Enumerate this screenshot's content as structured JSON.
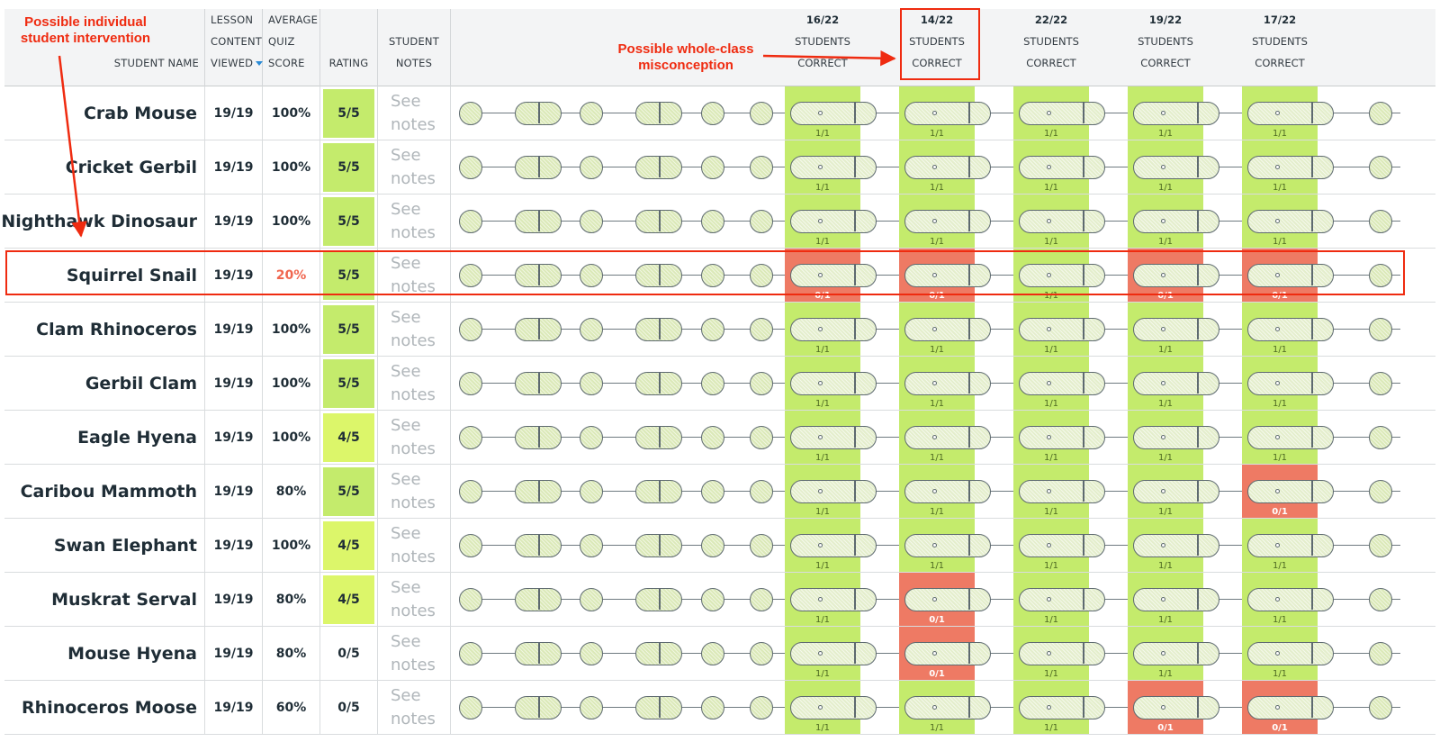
{
  "headers": {
    "student_name": "STUDENT NAME",
    "lesson_content_viewed": [
      "LESSON",
      "CONTENT",
      "VIEWED"
    ],
    "average_quiz_score": [
      "AVERAGE",
      "QUIZ",
      "SCORE"
    ],
    "rating": "RATING",
    "student_notes": [
      "STUDENT",
      "NOTES"
    ],
    "quizzes": [
      {
        "fraction": "16/22",
        "line1": "STUDENTS",
        "line2": "CORRECT"
      },
      {
        "fraction": "14/22",
        "line1": "STUDENTS",
        "line2": "CORRECT"
      },
      {
        "fraction": "22/22",
        "line1": "STUDENTS",
        "line2": "CORRECT"
      },
      {
        "fraction": "19/22",
        "line1": "STUDENTS",
        "line2": "CORRECT"
      },
      {
        "fraction": "17/22",
        "line1": "STUDENTS",
        "line2": "CORRECT"
      }
    ]
  },
  "annotations": {
    "individual": [
      "Possible individual",
      "student intervention"
    ],
    "whole_class": [
      "Possible whole-class",
      "misconception"
    ],
    "color": "#ef2b10"
  },
  "notes_label": [
    "See",
    "notes"
  ],
  "colors": {
    "correct": "#c4eb6c",
    "incorrect": "#ee7a64",
    "rating_high": "#c4eb6c",
    "rating_mid": "#dcf66a",
    "low_score": "#f0664f"
  },
  "students": [
    {
      "name": "Crab Mouse",
      "viewed": "19/19",
      "score": "100%",
      "low": false,
      "rating": "5/5",
      "rating_level": "high",
      "quizzes": [
        "1/1",
        "1/1",
        "1/1",
        "1/1",
        "1/1"
      ]
    },
    {
      "name": "Cricket Gerbil",
      "viewed": "19/19",
      "score": "100%",
      "low": false,
      "rating": "5/5",
      "rating_level": "high",
      "quizzes": [
        "1/1",
        "1/1",
        "1/1",
        "1/1",
        "1/1"
      ]
    },
    {
      "name": "Nighthawk Dinosaur",
      "viewed": "19/19",
      "score": "100%",
      "low": false,
      "rating": "5/5",
      "rating_level": "high",
      "quizzes": [
        "1/1",
        "1/1",
        "1/1",
        "1/1",
        "1/1"
      ]
    },
    {
      "name": "Squirrel Snail",
      "viewed": "19/19",
      "score": "20%",
      "low": true,
      "rating": "5/5",
      "rating_level": "high",
      "quizzes": [
        "0/1",
        "0/1",
        "1/1",
        "0/1",
        "0/1"
      ]
    },
    {
      "name": "Clam Rhinoceros",
      "viewed": "19/19",
      "score": "100%",
      "low": false,
      "rating": "5/5",
      "rating_level": "high",
      "quizzes": [
        "1/1",
        "1/1",
        "1/1",
        "1/1",
        "1/1"
      ]
    },
    {
      "name": "Gerbil Clam",
      "viewed": "19/19",
      "score": "100%",
      "low": false,
      "rating": "5/5",
      "rating_level": "high",
      "quizzes": [
        "1/1",
        "1/1",
        "1/1",
        "1/1",
        "1/1"
      ]
    },
    {
      "name": "Eagle Hyena",
      "viewed": "19/19",
      "score": "100%",
      "low": false,
      "rating": "4/5",
      "rating_level": "mid",
      "quizzes": [
        "1/1",
        "1/1",
        "1/1",
        "1/1",
        "1/1"
      ]
    },
    {
      "name": "Caribou Mammoth",
      "viewed": "19/19",
      "score": "80%",
      "low": false,
      "rating": "5/5",
      "rating_level": "high",
      "quizzes": [
        "1/1",
        "1/1",
        "1/1",
        "1/1",
        "0/1"
      ]
    },
    {
      "name": "Swan Elephant",
      "viewed": "19/19",
      "score": "100%",
      "low": false,
      "rating": "4/5",
      "rating_level": "mid",
      "quizzes": [
        "1/1",
        "1/1",
        "1/1",
        "1/1",
        "1/1"
      ]
    },
    {
      "name": "Muskrat Serval",
      "viewed": "19/19",
      "score": "80%",
      "low": false,
      "rating": "4/5",
      "rating_level": "mid",
      "quizzes": [
        "1/1",
        "0/1",
        "1/1",
        "1/1",
        "1/1"
      ]
    },
    {
      "name": "Mouse Hyena",
      "viewed": "19/19",
      "score": "80%",
      "low": false,
      "rating": "0/5",
      "rating_level": "none",
      "quizzes": [
        "1/1",
        "0/1",
        "1/1",
        "1/1",
        "1/1"
      ]
    },
    {
      "name": "Rhinoceros Moose",
      "viewed": "19/19",
      "score": "60%",
      "low": false,
      "rating": "0/5",
      "rating_level": "none",
      "quizzes": [
        "1/1",
        "1/1",
        "1/1",
        "0/1",
        "0/1"
      ]
    }
  ]
}
